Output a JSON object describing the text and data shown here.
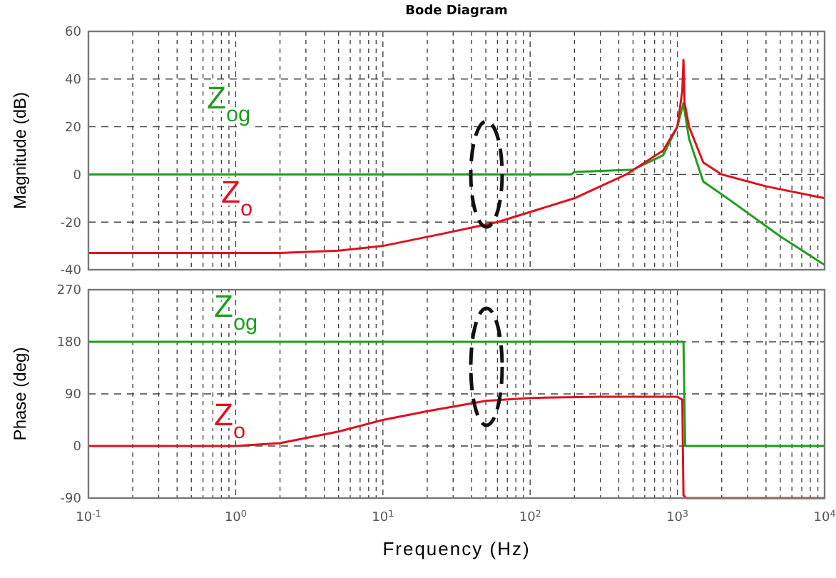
{
  "chart_data": [
    {
      "type": "line",
      "title": "Bode Diagram",
      "ylabel": "Magnitude (dB)",
      "log": "x",
      "grid": true,
      "tick_labels": "y",
      "xlim": [
        0.1,
        10000
      ],
      "ylim": [
        -40,
        60
      ],
      "xticks": [
        {
          "value": 0.1,
          "label": null
        },
        {
          "value": 1,
          "label": null
        },
        {
          "value": 10,
          "label": null
        },
        {
          "value": 100,
          "label": null
        },
        {
          "value": 1000,
          "label": null
        },
        {
          "value": 10000,
          "label": null
        }
      ],
      "yticks": [
        -40,
        -20,
        0,
        20,
        40,
        60
      ],
      "series": [
        {
          "name": "Z$_{og}$",
          "color": "#1e9e1e",
          "x": [
            0.1,
            100,
            190,
            200,
            500,
            800,
            1000,
            1080,
            1100,
            1130,
            1200,
            1500,
            2300,
            5000,
            10000
          ],
          "values": [
            0,
            0,
            0,
            1,
            2,
            8,
            20,
            28,
            30,
            25,
            15,
            -3,
            -11,
            -26,
            -38
          ]
        },
        {
          "name": "Z$_{o}$",
          "color": "#e0101e",
          "x": [
            0.1,
            2,
            5,
            10,
            25,
            60,
            200,
            450,
            800,
            1000,
            1080,
            1100,
            1120,
            1200,
            1500,
            2000,
            4000,
            10000
          ],
          "values": [
            -33,
            -33,
            -32,
            -30,
            -25,
            -20,
            -10,
            0,
            10,
            20,
            35,
            48,
            30,
            20,
            5,
            0,
            -5,
            -10
          ]
        }
      ]
    },
    {
      "type": "line",
      "ylabel": "Phase (deg)",
      "xlabel": "Frequency (Hz)",
      "log": "x",
      "grid": true,
      "xlim": [
        0.1,
        10000
      ],
      "ylim": [
        -90,
        270
      ],
      "xticks": [
        {
          "value": 0.1,
          "label": "10$^{-1}$"
        },
        {
          "value": 1,
          "label": "10$^{0}$"
        },
        {
          "value": 10,
          "label": "10$^{1}$"
        },
        {
          "value": 100,
          "label": "10$^{2}$"
        },
        {
          "value": 1000,
          "label": "10$^{3}$"
        },
        {
          "value": 10000,
          "label": "10$^{4}$"
        }
      ],
      "yticks": [
        -90,
        0,
        90,
        180,
        270
      ],
      "series": [
        {
          "name": "Z$_{og}$",
          "color": "#1e9e1e",
          "x": [
            0.1,
            1100,
            1130,
            10000
          ],
          "values": [
            180,
            180,
            0,
            0
          ]
        },
        {
          "name": "Z$_{o}$",
          "color": "#e0101e",
          "x": [
            0.1,
            1,
            2,
            5,
            10,
            20,
            50,
            100,
            300,
            1000,
            1080,
            1100,
            1150,
            10000
          ],
          "values": [
            0,
            0,
            5,
            25,
            45,
            60,
            78,
            83,
            85,
            85,
            80,
            -85,
            -90,
            -90
          ]
        }
      ]
    }
  ]
}
